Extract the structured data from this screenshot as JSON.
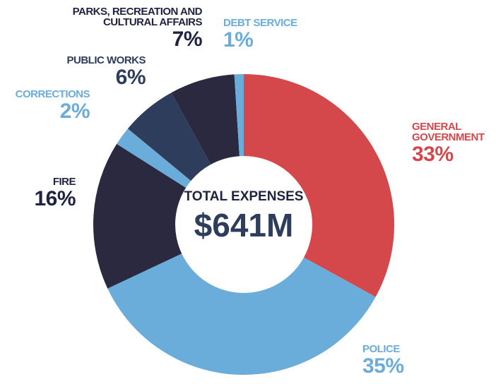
{
  "chart_data": {
    "type": "donut",
    "annotations": [
      "TOTAL EXPENSES",
      "$641M"
    ],
    "categories": [
      "GENERAL GOVERNMENT",
      "POLICE",
      "FIRE",
      "CORRECTIONS",
      "PUBLIC WORKS",
      "PARKS, RECREATION AND CULTURAL AFFAIRS",
      "DEBT SERVICE"
    ],
    "values": [
      33,
      35,
      16,
      2,
      6,
      7,
      1
    ],
    "value_labels": [
      "33%",
      "35%",
      "16%",
      "2%",
      "6%",
      "7%",
      "1%"
    ],
    "colors": [
      "#d4474b",
      "#6aacda",
      "#2a2940",
      "#6aacda",
      "#2e3d5c",
      "#2a2940",
      "#6aacda"
    ]
  }
}
